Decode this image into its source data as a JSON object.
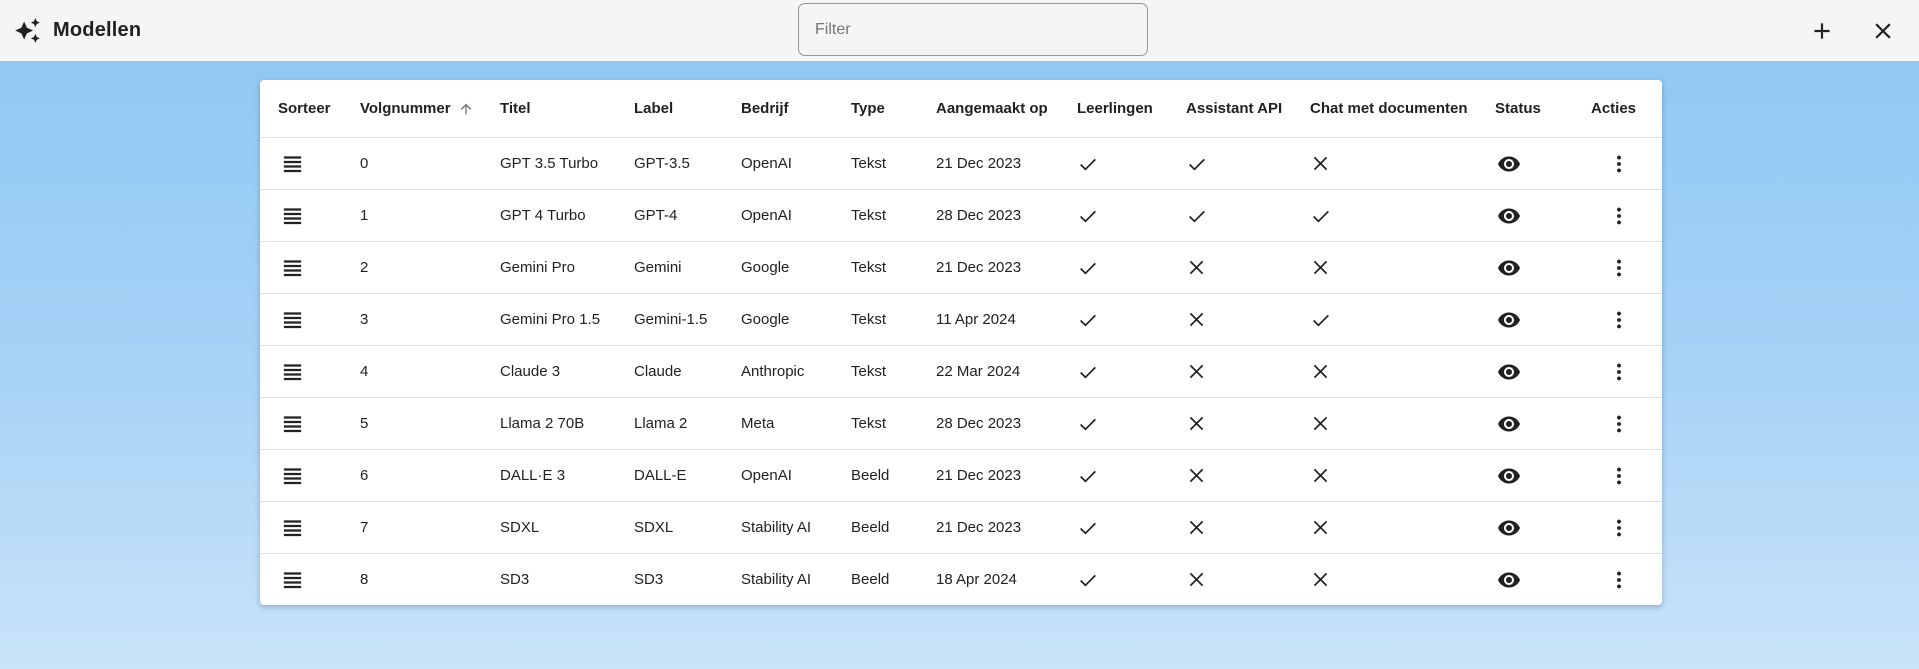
{
  "app": {
    "title": "Modellen",
    "title_icon": "sparkles-icon",
    "toolbar": {
      "filter_placeholder": "Filter",
      "add_icon": "plus-icon",
      "close_icon": "close-icon"
    }
  },
  "colors": {
    "appbar_bg": "#f5f5f5",
    "background_top": "#8cc7f3",
    "background_bottom": "#c9e3f9",
    "table_bg": "#ffffff",
    "divider": "#e0e0e0",
    "text": "#212121",
    "icon": "#212121",
    "sort_arrow": "#757575"
  },
  "table": {
    "sorted_column": "Volgnummer",
    "sort_direction": "ascending",
    "columns": [
      {
        "key": "sorteer",
        "label": "Sorteer"
      },
      {
        "key": "volgnummer",
        "label": "Volgnummer"
      },
      {
        "key": "titel",
        "label": "Titel"
      },
      {
        "key": "label",
        "label": "Label"
      },
      {
        "key": "bedrijf",
        "label": "Bedrijf"
      },
      {
        "key": "type",
        "label": "Type"
      },
      {
        "key": "aangemaakt_op",
        "label": "Aangemaakt op"
      },
      {
        "key": "leerlingen",
        "label": "Leerlingen"
      },
      {
        "key": "assistant_api",
        "label": "Assistant API"
      },
      {
        "key": "chat_met_documenten",
        "label": "Chat met documenten"
      },
      {
        "key": "status",
        "label": "Status"
      },
      {
        "key": "acties",
        "label": "Acties"
      }
    ],
    "rows": [
      {
        "volgnummer": "0",
        "titel": "GPT 3.5 Turbo",
        "label": "GPT-3.5",
        "bedrijf": "OpenAI",
        "type": "Tekst",
        "aangemaakt_op": "21 Dec 2023",
        "leerlingen": true,
        "assistant_api": true,
        "chat_met_documenten": false
      },
      {
        "volgnummer": "1",
        "titel": "GPT 4 Turbo",
        "label": "GPT-4",
        "bedrijf": "OpenAI",
        "type": "Tekst",
        "aangemaakt_op": "28 Dec 2023",
        "leerlingen": true,
        "assistant_api": true,
        "chat_met_documenten": true
      },
      {
        "volgnummer": "2",
        "titel": "Gemini Pro",
        "label": "Gemini",
        "bedrijf": "Google",
        "type": "Tekst",
        "aangemaakt_op": "21 Dec 2023",
        "leerlingen": true,
        "assistant_api": false,
        "chat_met_documenten": false
      },
      {
        "volgnummer": "3",
        "titel": "Gemini Pro 1.5",
        "label": "Gemini-1.5",
        "bedrijf": "Google",
        "type": "Tekst",
        "aangemaakt_op": "11 Apr 2024",
        "leerlingen": true,
        "assistant_api": false,
        "chat_met_documenten": true
      },
      {
        "volgnummer": "4",
        "titel": "Claude 3",
        "label": "Claude",
        "bedrijf": "Anthropic",
        "type": "Tekst",
        "aangemaakt_op": "22 Mar 2024",
        "leerlingen": true,
        "assistant_api": false,
        "chat_met_documenten": false
      },
      {
        "volgnummer": "5",
        "titel": "Llama 2 70B",
        "label": "Llama 2",
        "bedrijf": "Meta",
        "type": "Tekst",
        "aangemaakt_op": "28 Dec 2023",
        "leerlingen": true,
        "assistant_api": false,
        "chat_met_documenten": false
      },
      {
        "volgnummer": "6",
        "titel": "DALL·E 3",
        "label": "DALL-E",
        "bedrijf": "OpenAI",
        "type": "Beeld",
        "aangemaakt_op": "21 Dec 2023",
        "leerlingen": true,
        "assistant_api": false,
        "chat_met_documenten": false
      },
      {
        "volgnummer": "7",
        "titel": "SDXL",
        "label": "SDXL",
        "bedrijf": "Stability AI",
        "type": "Beeld",
        "aangemaakt_op": "21 Dec 2023",
        "leerlingen": true,
        "assistant_api": false,
        "chat_met_documenten": false
      },
      {
        "volgnummer": "8",
        "titel": "SD3",
        "label": "SD3",
        "bedrijf": "Stability AI",
        "type": "Beeld",
        "aangemaakt_op": "18 Apr 2024",
        "leerlingen": true,
        "assistant_api": false,
        "chat_met_documenten": false
      }
    ],
    "boolean_true_icon": "check-icon",
    "boolean_false_icon": "cross-icon",
    "status_icon": "eye-icon",
    "actions_icon": "kebab-menu-icon",
    "drag_icon": "drag-handle-icon"
  }
}
